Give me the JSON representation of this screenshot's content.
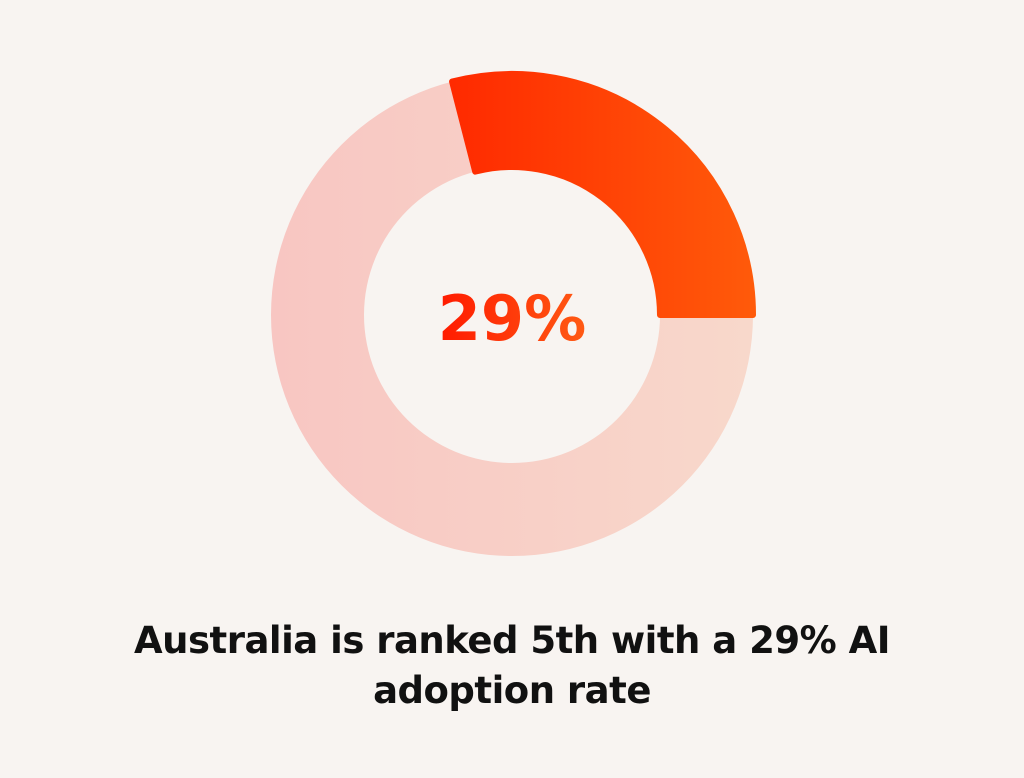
{
  "chart_data": {
    "type": "pie",
    "variant": "donut",
    "value_percent": 29,
    "center_label": "29%",
    "caption_lines": [
      "Australia is ranked 5th with a 29% AI",
      "adoption rate"
    ],
    "colors": {
      "highlight_start": "#ff2a00",
      "highlight_end": "#ff5a0a",
      "remainder_start": "#f8c6c2",
      "remainder_end": "#f8d8cb",
      "center_text_start": "#ff1a00",
      "center_text_end": "#ff5a14",
      "caption_text": "#111111",
      "background": "#f8f4f1"
    }
  }
}
